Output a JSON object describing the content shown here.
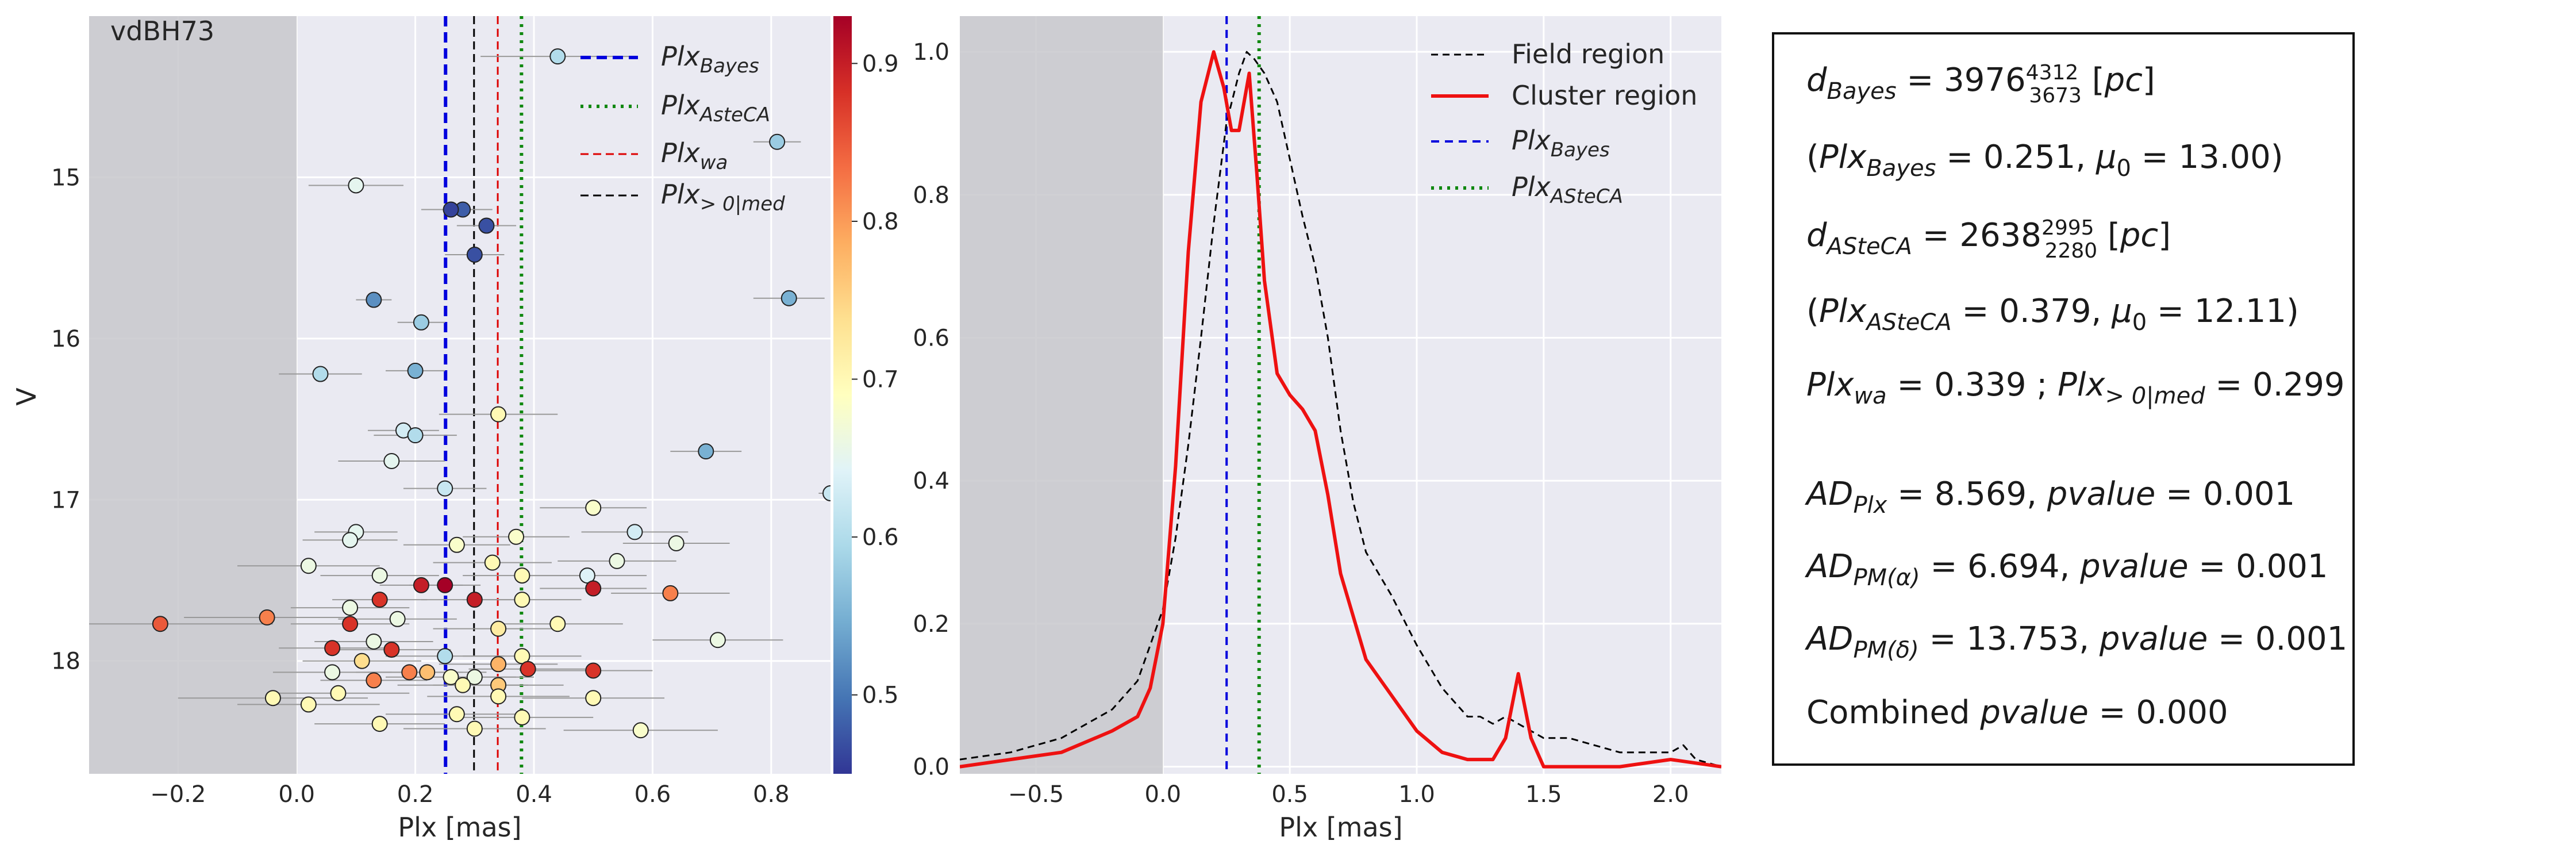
{
  "chart_data": [
    {
      "type": "scatter",
      "panel": "left",
      "label": "vdBH73",
      "xlabel": "Plx [mas]",
      "ylabel": "V",
      "xlim": [
        -0.35,
        0.9
      ],
      "ylim": [
        18.7,
        14.0
      ],
      "y_inverted": true,
      "grid": true,
      "shaded_region": [
        -0.35,
        0.0
      ],
      "xticks": [
        "−0.2",
        "0.0",
        "0.2",
        "0.4",
        "0.6",
        "0.8"
      ],
      "yticks": [
        "15",
        "16",
        "17",
        "18"
      ],
      "colorbar": {
        "ticks": [
          "0.5",
          "0.6",
          "0.7",
          "0.8",
          "0.9"
        ],
        "range": [
          0.45,
          0.93
        ],
        "colormap": "RdYlBu_r"
      },
      "vlines": [
        {
          "name": "Plx_Bayes",
          "sub": "Bayes",
          "x": 0.251,
          "style": "dashed",
          "color": "#0000dd"
        },
        {
          "name": "Plx_AsteCA",
          "sub": "AsteCA",
          "x": 0.379,
          "style": "dotted",
          "color": "#118811"
        },
        {
          "name": "Plx_wa",
          "sub": "wa",
          "x": 0.339,
          "style": "dashed",
          "color": "#dd0000"
        },
        {
          "name": "Plx_>0|med",
          "sub": ">0|med",
          "x": 0.299,
          "style": "dashed",
          "color": "#000000"
        }
      ],
      "points": [
        {
          "x": 0.44,
          "y": 14.25,
          "e": 0.13,
          "p": 0.6
        },
        {
          "x": 0.81,
          "y": 14.78,
          "e": 0.04,
          "p": 0.58
        },
        {
          "x": 0.1,
          "y": 15.05,
          "e": 0.08,
          "p": 0.65
        },
        {
          "x": 0.28,
          "y": 15.2,
          "e": 0.05,
          "p": 0.48
        },
        {
          "x": 0.32,
          "y": 15.3,
          "e": 0.05,
          "p": 0.47
        },
        {
          "x": 0.26,
          "y": 15.2,
          "e": 0.05,
          "p": 0.46
        },
        {
          "x": 0.3,
          "y": 15.48,
          "e": 0.05,
          "p": 0.47
        },
        {
          "x": 0.83,
          "y": 15.75,
          "e": 0.06,
          "p": 0.55
        },
        {
          "x": 0.13,
          "y": 15.76,
          "e": 0.03,
          "p": 0.52
        },
        {
          "x": 0.21,
          "y": 15.9,
          "e": 0.04,
          "p": 0.58
        },
        {
          "x": 0.04,
          "y": 16.22,
          "e": 0.07,
          "p": 0.6
        },
        {
          "x": 0.2,
          "y": 16.2,
          "e": 0.05,
          "p": 0.55
        },
        {
          "x": 0.34,
          "y": 16.47,
          "e": 0.1,
          "p": 0.7
        },
        {
          "x": 0.18,
          "y": 16.57,
          "e": 0.06,
          "p": 0.63
        },
        {
          "x": 0.2,
          "y": 16.6,
          "e": 0.07,
          "p": 0.6
        },
        {
          "x": 0.16,
          "y": 16.76,
          "e": 0.09,
          "p": 0.65
        },
        {
          "x": 0.69,
          "y": 16.7,
          "e": 0.06,
          "p": 0.55
        },
        {
          "x": 0.25,
          "y": 16.93,
          "e": 0.07,
          "p": 0.62
        },
        {
          "x": 0.9,
          "y": 16.96,
          "e": 0.02,
          "p": 0.62
        },
        {
          "x": 0.5,
          "y": 17.05,
          "e": 0.09,
          "p": 0.68
        },
        {
          "x": 0.1,
          "y": 17.2,
          "e": 0.07,
          "p": 0.65
        },
        {
          "x": 0.09,
          "y": 17.25,
          "e": 0.08,
          "p": 0.65
        },
        {
          "x": 0.57,
          "y": 17.2,
          "e": 0.09,
          "p": 0.63
        },
        {
          "x": 0.64,
          "y": 17.27,
          "e": 0.09,
          "p": 0.66
        },
        {
          "x": 0.27,
          "y": 17.28,
          "e": 0.09,
          "p": 0.68
        },
        {
          "x": 0.37,
          "y": 17.23,
          "e": 0.09,
          "p": 0.68
        },
        {
          "x": 0.02,
          "y": 17.41,
          "e": 0.12,
          "p": 0.66
        },
        {
          "x": 0.33,
          "y": 17.39,
          "e": 0.1,
          "p": 0.7
        },
        {
          "x": 0.54,
          "y": 17.38,
          "e": 0.1,
          "p": 0.66
        },
        {
          "x": 0.14,
          "y": 17.47,
          "e": 0.1,
          "p": 0.66
        },
        {
          "x": 0.38,
          "y": 17.47,
          "e": 0.1,
          "p": 0.7
        },
        {
          "x": 0.49,
          "y": 17.47,
          "e": 0.1,
          "p": 0.64
        },
        {
          "x": 0.21,
          "y": 17.53,
          "e": 0.07,
          "p": 0.9
        },
        {
          "x": 0.25,
          "y": 17.53,
          "e": 0.06,
          "p": 0.93
        },
        {
          "x": 0.5,
          "y": 17.55,
          "e": 0.09,
          "p": 0.9
        },
        {
          "x": 0.14,
          "y": 17.62,
          "e": 0.08,
          "p": 0.88
        },
        {
          "x": 0.3,
          "y": 17.62,
          "e": 0.09,
          "p": 0.9
        },
        {
          "x": 0.38,
          "y": 17.62,
          "e": 0.1,
          "p": 0.7
        },
        {
          "x": 0.63,
          "y": 17.58,
          "e": 0.1,
          "p": 0.82
        },
        {
          "x": 0.09,
          "y": 17.67,
          "e": 0.1,
          "p": 0.66
        },
        {
          "x": -0.23,
          "y": 17.77,
          "e": 0.19,
          "p": 0.85
        },
        {
          "x": -0.05,
          "y": 17.73,
          "e": 0.14,
          "p": 0.82
        },
        {
          "x": 0.09,
          "y": 17.77,
          "e": 0.1,
          "p": 0.88
        },
        {
          "x": 0.17,
          "y": 17.74,
          "e": 0.1,
          "p": 0.66
        },
        {
          "x": 0.34,
          "y": 17.8,
          "e": 0.11,
          "p": 0.72
        },
        {
          "x": 0.44,
          "y": 17.77,
          "e": 0.11,
          "p": 0.7
        },
        {
          "x": 0.71,
          "y": 17.87,
          "e": 0.11,
          "p": 0.66
        },
        {
          "x": 0.13,
          "y": 17.88,
          "e": 0.1,
          "p": 0.66
        },
        {
          "x": 0.06,
          "y": 17.92,
          "e": 0.09,
          "p": 0.88
        },
        {
          "x": 0.16,
          "y": 17.93,
          "e": 0.1,
          "p": 0.88
        },
        {
          "x": 0.25,
          "y": 17.97,
          "e": 0.1,
          "p": 0.6
        },
        {
          "x": 0.38,
          "y": 17.97,
          "e": 0.1,
          "p": 0.7
        },
        {
          "x": 0.11,
          "y": 18.0,
          "e": 0.1,
          "p": 0.74
        },
        {
          "x": 0.34,
          "y": 18.02,
          "e": 0.1,
          "p": 0.78
        },
        {
          "x": 0.06,
          "y": 18.07,
          "e": 0.1,
          "p": 0.66
        },
        {
          "x": 0.19,
          "y": 18.07,
          "e": 0.09,
          "p": 0.82
        },
        {
          "x": 0.22,
          "y": 18.07,
          "e": 0.1,
          "p": 0.77
        },
        {
          "x": 0.26,
          "y": 18.1,
          "e": 0.11,
          "p": 0.68
        },
        {
          "x": 0.3,
          "y": 18.1,
          "e": 0.1,
          "p": 0.66
        },
        {
          "x": 0.39,
          "y": 18.05,
          "e": 0.1,
          "p": 0.88
        },
        {
          "x": 0.5,
          "y": 18.06,
          "e": 0.1,
          "p": 0.88
        },
        {
          "x": 0.13,
          "y": 18.12,
          "e": 0.09,
          "p": 0.82
        },
        {
          "x": 0.28,
          "y": 18.15,
          "e": 0.11,
          "p": 0.7
        },
        {
          "x": 0.34,
          "y": 18.15,
          "e": 0.11,
          "p": 0.76
        },
        {
          "x": 0.07,
          "y": 18.2,
          "e": 0.12,
          "p": 0.7
        },
        {
          "x": 0.34,
          "y": 18.22,
          "e": 0.12,
          "p": 0.7
        },
        {
          "x": -0.04,
          "y": 18.23,
          "e": 0.16,
          "p": 0.7
        },
        {
          "x": 0.5,
          "y": 18.23,
          "e": 0.12,
          "p": 0.7
        },
        {
          "x": 0.02,
          "y": 18.27,
          "e": 0.12,
          "p": 0.7
        },
        {
          "x": 0.27,
          "y": 18.33,
          "e": 0.12,
          "p": 0.7
        },
        {
          "x": 0.38,
          "y": 18.35,
          "e": 0.12,
          "p": 0.7
        },
        {
          "x": 0.14,
          "y": 18.39,
          "e": 0.11,
          "p": 0.7
        },
        {
          "x": 0.3,
          "y": 18.42,
          "e": 0.12,
          "p": 0.7
        },
        {
          "x": 0.58,
          "y": 18.43,
          "e": 0.13,
          "p": 0.68
        }
      ]
    },
    {
      "type": "line",
      "panel": "middle",
      "xlabel": "Plx [mas]",
      "ylabel": "",
      "xlim": [
        -0.8,
        2.2
      ],
      "ylim": [
        -0.01,
        1.05
      ],
      "grid": true,
      "shaded_region": [
        -0.8,
        0.0
      ],
      "xticks": [
        "−0.5",
        "0.0",
        "0.5",
        "1.0",
        "1.5",
        "2.0"
      ],
      "yticks": [
        "0.0",
        "0.2",
        "0.4",
        "0.6",
        "0.8",
        "1.0"
      ],
      "vlines": [
        {
          "name": "Plx_Bayes",
          "sub": "Bayes",
          "x": 0.251,
          "style": "dashed",
          "color": "#0000dd"
        },
        {
          "name": "Plx_AsteCA",
          "sub": "AsteCA",
          "x": 0.379,
          "style": "dotted",
          "color": "#118811"
        }
      ],
      "series": [
        {
          "name": "Field region",
          "style": "dashed",
          "color": "#000000",
          "x": [
            -0.8,
            -0.6,
            -0.4,
            -0.2,
            -0.1,
            0.0,
            0.05,
            0.1,
            0.15,
            0.2,
            0.25,
            0.3,
            0.33,
            0.36,
            0.4,
            0.45,
            0.5,
            0.55,
            0.6,
            0.65,
            0.7,
            0.75,
            0.8,
            0.9,
            1.0,
            1.1,
            1.2,
            1.25,
            1.3,
            1.35,
            1.4,
            1.5,
            1.6,
            1.7,
            1.8,
            1.9,
            2.0,
            2.05,
            2.1,
            2.2
          ],
          "y": [
            0.01,
            0.02,
            0.04,
            0.08,
            0.12,
            0.22,
            0.32,
            0.45,
            0.6,
            0.76,
            0.9,
            0.97,
            1.0,
            0.99,
            0.97,
            0.93,
            0.85,
            0.77,
            0.7,
            0.6,
            0.47,
            0.37,
            0.3,
            0.24,
            0.17,
            0.11,
            0.07,
            0.07,
            0.06,
            0.07,
            0.06,
            0.04,
            0.04,
            0.03,
            0.02,
            0.02,
            0.02,
            0.03,
            0.01,
            0.0
          ]
        },
        {
          "name": "Cluster region",
          "style": "solid",
          "color": "#ee1111",
          "x": [
            -0.8,
            -0.6,
            -0.4,
            -0.2,
            -0.1,
            -0.05,
            0.0,
            0.05,
            0.1,
            0.15,
            0.2,
            0.24,
            0.27,
            0.3,
            0.34,
            0.37,
            0.4,
            0.45,
            0.5,
            0.55,
            0.6,
            0.65,
            0.7,
            0.8,
            0.9,
            1.0,
            1.1,
            1.2,
            1.3,
            1.35,
            1.4,
            1.45,
            1.5,
            1.6,
            1.8,
            2.0,
            2.2
          ],
          "y": [
            0.0,
            0.01,
            0.02,
            0.05,
            0.07,
            0.11,
            0.2,
            0.42,
            0.72,
            0.93,
            1.0,
            0.95,
            0.89,
            0.89,
            0.97,
            0.83,
            0.68,
            0.55,
            0.52,
            0.5,
            0.47,
            0.38,
            0.27,
            0.15,
            0.1,
            0.05,
            0.02,
            0.01,
            0.01,
            0.04,
            0.13,
            0.04,
            0.0,
            0.0,
            0.0,
            0.01,
            0.0
          ]
        }
      ]
    }
  ],
  "left_legend": [
    "Plx",
    "Plx",
    "Plx",
    "Plx"
  ],
  "right_legend": [
    "Field region",
    "Cluster region",
    "Plx",
    "Plx"
  ],
  "stats_box": {
    "l1_pre": "d",
    "l1_sub": "Bayes",
    "l1_mid": " = 3976",
    "l1_sup": "4312",
    "l1_low": "3673",
    "l1_post": " [",
    "l1_unit": "pc",
    "l1_end": "]",
    "l2_open": "(",
    "l2_a": "Plx",
    "l2_a_sub": "Bayes",
    "l2_a_val": " = 0.251, ",
    "l2_mu": "μ",
    "l2_mu_sub": "0",
    "l2_mu_val": " = 13.00)",
    "l3_pre": "d",
    "l3_sub": "ASteCA",
    "l3_mid": " = 2638",
    "l3_sup": "2995",
    "l3_low": "2280",
    "l3_post": " [",
    "l3_unit": "pc",
    "l3_end": "]",
    "l4_open": "(",
    "l4_a": "Plx",
    "l4_a_sub": "ASteCA",
    "l4_a_val": " = 0.379, ",
    "l4_mu": "μ",
    "l4_mu_sub": "0",
    "l4_mu_val": " = 12.11)",
    "l5_a": "Plx",
    "l5_a_sub": "wa",
    "l5_a_val": " = 0.339 ; ",
    "l5_b": "Plx",
    "l5_b_sub": "> 0|med",
    "l5_b_val": " = 0.299",
    "l6_a": "AD",
    "l6_a_sub": "Plx",
    "l6_val": " = 8.569, ",
    "l6_p": "pvalue",
    "l6_pv": " = 0.001",
    "l7_a": "AD",
    "l7_a_sub": "PM(α)",
    "l7_val": " = 6.694, ",
    "l7_p": "pvalue",
    "l7_pv": " = 0.001",
    "l8_a": "AD",
    "l8_a_sub": "PM(δ)",
    "l8_val": " = 13.753, ",
    "l8_p": "pvalue",
    "l8_pv": " = 0.001",
    "l9_a": "Combined ",
    "l9_p": "pvalue",
    "l9_pv": " = 0.000"
  }
}
